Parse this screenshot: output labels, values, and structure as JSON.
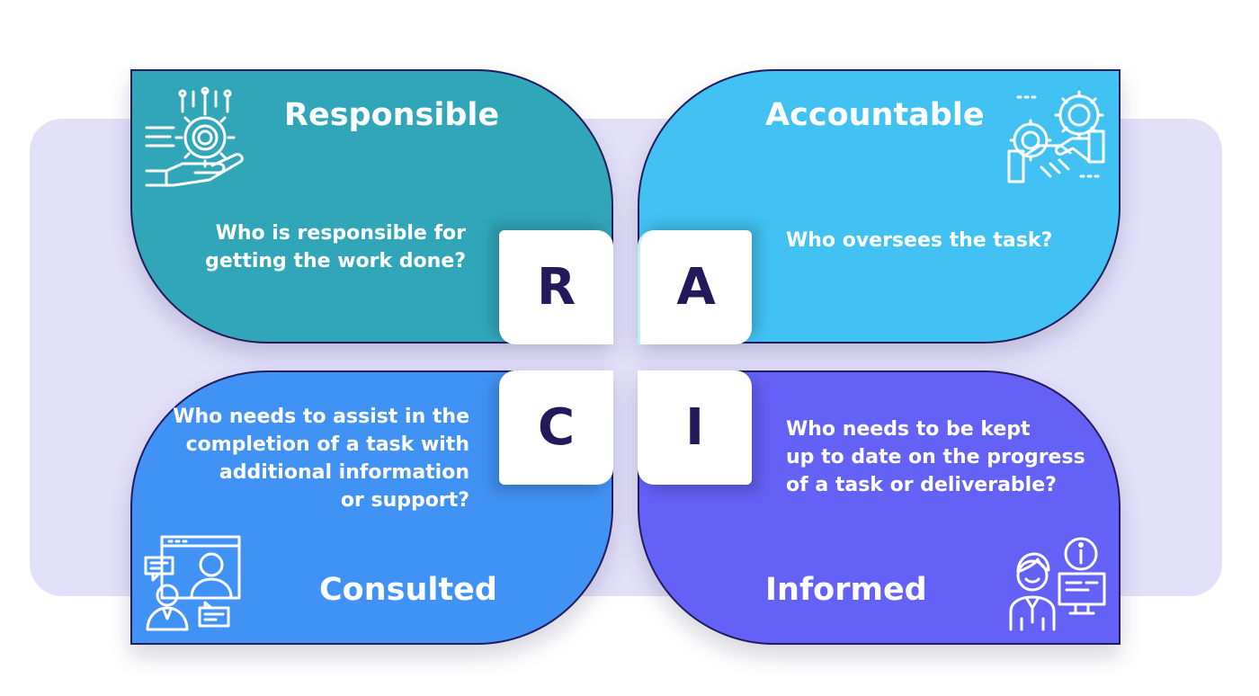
{
  "colors": {
    "responsible": "#31a6b9",
    "accountable": "#41c2f2",
    "consulted": "#4192f5",
    "informed": "#6461f6",
    "letter": "#231a5c",
    "outline": "#221c5e",
    "background_band": "#e3e1f9"
  },
  "quadrants": {
    "responsible": {
      "letter": "R",
      "title": "Responsible",
      "question": [
        "Who is responsible for",
        "getting the work done?"
      ],
      "icon": "gear-hand-icon"
    },
    "accountable": {
      "letter": "A",
      "title": "Accountable",
      "question": [
        "Who oversees the task?"
      ],
      "icon": "handshake-gears-icon"
    },
    "consulted": {
      "letter": "C",
      "title": "Consulted",
      "question": [
        "Who needs to assist in the",
        "completion of a task with",
        "additional information",
        "or support?"
      ],
      "icon": "video-call-icon"
    },
    "informed": {
      "letter": "I",
      "title": "Informed",
      "question": [
        "Who needs to be kept",
        "up to date on the progress",
        "of a task or deliverable?"
      ],
      "icon": "person-info-computer-icon"
    }
  }
}
